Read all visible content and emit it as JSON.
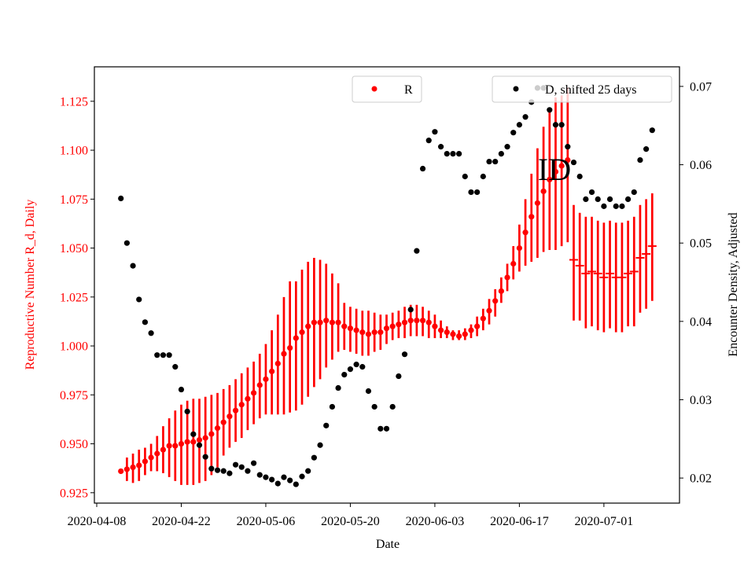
{
  "chart_data": {
    "type": "scatter",
    "title": "",
    "xlabel": "Date",
    "ylabel_left": "Reproductive Number R_d, Daily",
    "ylabel_right": "Encounter Density, Adjusted",
    "xlim": [
      "2020-04-08",
      "2020-07-13"
    ],
    "ylim_left": [
      0.9197,
      1.1426
    ],
    "ylim_right": [
      0.0168,
      0.0725
    ],
    "x_ticks": [
      "2020-04-08",
      "2020-04-22",
      "2020-05-06",
      "2020-05-20",
      "2020-06-03",
      "2020-06-17",
      "2020-07-01"
    ],
    "y_ticks_left": [
      "0.925",
      "0.950",
      "0.975",
      "1.000",
      "1.025",
      "1.050",
      "1.075",
      "1.100",
      "1.125"
    ],
    "y_ticks_right": [
      "0.02",
      "0.03",
      "0.04",
      "0.05",
      "0.06",
      "0.07"
    ],
    "grid": false,
    "colors": {
      "r": "#ff0000",
      "d": "#000000",
      "left_axis_text": "#ff0000"
    },
    "annotation": "ID",
    "legend_r": {
      "label": "R",
      "placement": "top-center"
    },
    "legend_d": {
      "label": "D, shifted 25 days",
      "placement": "top-right"
    },
    "dates": [
      "2020-04-12",
      "2020-04-13",
      "2020-04-14",
      "2020-04-15",
      "2020-04-16",
      "2020-04-17",
      "2020-04-18",
      "2020-04-19",
      "2020-04-20",
      "2020-04-21",
      "2020-04-22",
      "2020-04-23",
      "2020-04-24",
      "2020-04-25",
      "2020-04-26",
      "2020-04-27",
      "2020-04-28",
      "2020-04-29",
      "2020-04-30",
      "2020-05-01",
      "2020-05-02",
      "2020-05-03",
      "2020-05-04",
      "2020-05-05",
      "2020-05-06",
      "2020-05-07",
      "2020-05-08",
      "2020-05-09",
      "2020-05-10",
      "2020-05-11",
      "2020-05-12",
      "2020-05-13",
      "2020-05-14",
      "2020-05-15",
      "2020-05-16",
      "2020-05-17",
      "2020-05-18",
      "2020-05-19",
      "2020-05-20",
      "2020-05-21",
      "2020-05-22",
      "2020-05-23",
      "2020-05-24",
      "2020-05-25",
      "2020-05-26",
      "2020-05-27",
      "2020-05-28",
      "2020-05-29",
      "2020-05-30",
      "2020-05-31",
      "2020-06-01",
      "2020-06-02",
      "2020-06-03",
      "2020-06-04",
      "2020-06-05",
      "2020-06-06",
      "2020-06-07",
      "2020-06-08",
      "2020-06-09",
      "2020-06-10",
      "2020-06-11",
      "2020-06-12",
      "2020-06-13",
      "2020-06-14",
      "2020-06-15",
      "2020-06-16",
      "2020-06-17",
      "2020-06-18",
      "2020-06-19",
      "2020-06-20",
      "2020-06-21",
      "2020-06-22",
      "2020-06-23",
      "2020-06-24",
      "2020-06-25",
      "2020-06-26",
      "2020-06-27",
      "2020-06-28",
      "2020-06-29",
      "2020-06-30",
      "2020-07-01",
      "2020-07-02",
      "2020-07-03",
      "2020-07-04",
      "2020-07-05",
      "2020-07-06",
      "2020-07-07",
      "2020-07-08",
      "2020-07-09"
    ],
    "series": [
      {
        "name": "R",
        "axis": "left",
        "values": [
          0.936,
          0.937,
          0.938,
          0.939,
          0.941,
          0.943,
          0.945,
          0.947,
          0.949,
          0.949,
          0.95,
          0.951,
          0.951,
          0.952,
          0.953,
          0.955,
          0.958,
          0.961,
          0.964,
          0.967,
          0.97,
          0.973,
          0.976,
          0.98,
          0.983,
          0.987,
          0.991,
          0.996,
          0.999,
          1.004,
          1.007,
          1.01,
          1.012,
          1.012,
          1.013,
          1.012,
          1.012,
          1.01,
          1.009,
          1.008,
          1.007,
          1.006,
          1.007,
          1.007,
          1.009,
          1.01,
          1.011,
          1.012,
          1.013,
          1.013,
          1.013,
          1.012,
          1.01,
          1.008,
          1.007,
          1.006,
          1.005,
          1.006,
          1.008,
          1.01,
          1.014,
          1.018,
          1.023,
          1.028,
          1.035,
          1.042,
          1.05,
          1.058,
          1.066,
          1.073,
          1.079,
          1.085,
          1.089,
          1.092,
          1.095,
          1.044,
          1.041,
          1.037,
          1.038,
          1.037,
          1.035,
          1.037,
          1.035,
          1.035,
          1.037,
          1.038,
          1.045,
          1.047,
          1.051
        ],
        "upper": [
          0.936,
          0.943,
          0.945,
          0.947,
          0.948,
          0.95,
          0.954,
          0.959,
          0.963,
          0.967,
          0.97,
          0.972,
          0.973,
          0.973,
          0.974,
          0.975,
          0.976,
          0.978,
          0.98,
          0.983,
          0.986,
          0.989,
          0.992,
          0.996,
          1.001,
          1.008,
          1.016,
          1.025,
          1.033,
          1.033,
          1.039,
          1.043,
          1.045,
          1.044,
          1.042,
          1.037,
          1.032,
          1.022,
          1.02,
          1.019,
          1.018,
          1.018,
          1.017,
          1.016,
          1.016,
          1.017,
          1.018,
          1.02,
          1.021,
          1.021,
          1.02,
          1.018,
          1.016,
          1.013,
          1.01,
          1.008,
          1.008,
          1.009,
          1.011,
          1.015,
          1.019,
          1.024,
          1.029,
          1.035,
          1.042,
          1.051,
          1.062,
          1.075,
          1.088,
          1.101,
          1.112,
          1.12,
          1.127,
          1.128,
          1.132,
          1.072,
          1.068,
          1.066,
          1.066,
          1.064,
          1.063,
          1.064,
          1.063,
          1.063,
          1.064,
          1.066,
          1.072,
          1.075,
          1.078
        ],
        "lower": [
          0.936,
          0.931,
          0.93,
          0.931,
          0.934,
          0.936,
          0.936,
          0.935,
          0.933,
          0.931,
          0.929,
          0.929,
          0.929,
          0.93,
          0.931,
          0.934,
          0.938,
          0.944,
          0.948,
          0.951,
          0.953,
          0.957,
          0.96,
          0.963,
          0.965,
          0.965,
          0.965,
          0.965,
          0.966,
          0.967,
          0.97,
          0.974,
          0.979,
          0.983,
          0.989,
          0.993,
          0.997,
          0.998,
          0.997,
          0.996,
          0.995,
          0.995,
          0.997,
          0.998,
          1.001,
          1.003,
          1.004,
          1.004,
          1.005,
          1.005,
          1.005,
          1.004,
          1.004,
          1.004,
          1.004,
          1.003,
          1.003,
          1.003,
          1.004,
          1.005,
          1.008,
          1.011,
          1.015,
          1.022,
          1.028,
          1.034,
          1.038,
          1.041,
          1.043,
          1.045,
          1.048,
          1.049,
          1.049,
          1.051,
          1.053,
          1.013,
          1.013,
          1.009,
          1.01,
          1.008,
          1.007,
          1.009,
          1.007,
          1.007,
          1.01,
          1.01,
          1.017,
          1.019,
          1.023
        ],
        "marker": [
          "o",
          "o",
          "o",
          "o",
          "o",
          "o",
          "o",
          "o",
          "o",
          "o",
          "o",
          "o",
          "o",
          "o",
          "o",
          "o",
          "o",
          "o",
          "o",
          "o",
          "o",
          "o",
          "o",
          "o",
          "o",
          "o",
          "o",
          "o",
          "o",
          "o",
          "o",
          "o",
          "o",
          "o",
          "o",
          "o",
          "o",
          "o",
          "o",
          "o",
          "o",
          "o",
          "o",
          "o",
          "o",
          "o",
          "o",
          "o",
          "o",
          "o",
          "o",
          "o",
          "o",
          "o",
          "o",
          "o",
          "o",
          "o",
          "o",
          "o",
          "o",
          "o",
          "o",
          "o",
          "o",
          "o",
          "o",
          "o",
          "o",
          "o",
          "o",
          "o",
          "o",
          "o",
          "o",
          "+",
          "+",
          "+",
          "+",
          "+",
          "+",
          "+",
          "+",
          "+",
          "+",
          "+",
          "+",
          "+",
          "+"
        ]
      },
      {
        "name": "D, shifted 25 days",
        "axis": "right",
        "values": [
          0.0557,
          0.05,
          0.0471,
          0.0428,
          0.0399,
          0.0385,
          0.0357,
          0.0357,
          0.0357,
          0.0342,
          0.0313,
          0.0285,
          0.0256,
          0.0242,
          0.0227,
          0.0212,
          0.021,
          0.0209,
          0.0206,
          0.0217,
          0.0214,
          0.0209,
          0.0219,
          0.0204,
          0.0201,
          0.0198,
          0.0193,
          0.0201,
          0.0197,
          0.0192,
          0.0202,
          0.0209,
          0.0226,
          0.0242,
          0.0267,
          0.0291,
          0.0315,
          0.0332,
          0.0339,
          0.0345,
          0.0342,
          0.0311,
          0.0291,
          0.0263,
          0.0263,
          0.0291,
          0.033,
          0.0358,
          0.0415,
          0.049,
          0.0595,
          0.0631,
          0.0642,
          0.0623,
          0.0614,
          0.0614,
          0.0614,
          0.0585,
          0.0565,
          0.0565,
          0.0585,
          0.0604,
          0.0604,
          0.0614,
          0.0623,
          0.0641,
          0.0651,
          0.0661,
          0.068,
          0.0698,
          0.0698,
          0.067,
          0.0651,
          0.0651,
          0.0623,
          0.0603,
          0.0585,
          0.0556,
          0.0565,
          0.0556,
          0.0547,
          0.0556,
          0.0547,
          0.0547,
          0.0556,
          0.0565,
          0.0606,
          0.062,
          0.0644
        ]
      }
    ]
  }
}
